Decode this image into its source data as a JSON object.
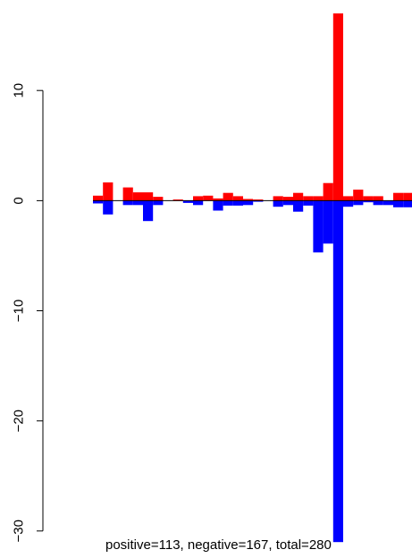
{
  "chart_data": {
    "type": "bar",
    "title": "",
    "xlabel": "",
    "ylabel": "",
    "ylim": [
      -30.5,
      17
    ],
    "y_ticks": [
      {
        "value": 10,
        "label": "10"
      },
      {
        "value": 0,
        "label": "0"
      },
      {
        "value": -10,
        "label": "−10"
      },
      {
        "value": -20,
        "label": "−20"
      },
      {
        "value": -30,
        "label": "−30"
      }
    ],
    "x_bin_count": 32,
    "series": [
      {
        "color": "#ff0000",
        "values": [
          0.45,
          1.65,
          0.0,
          1.2,
          0.75,
          0.75,
          0.35,
          0.0,
          0.1,
          0.0,
          0.4,
          0.45,
          0.2,
          0.7,
          0.4,
          0.15,
          0.1,
          0.0,
          0.4,
          0.35,
          0.7,
          0.4,
          0.4,
          1.6,
          17.0,
          0.4,
          1.0,
          0.4,
          0.4,
          0.0,
          0.7,
          0.7
        ]
      },
      {
        "color": "#0000ff",
        "values": [
          -0.25,
          -1.25,
          0.0,
          -0.4,
          -0.4,
          -1.85,
          -0.4,
          0.0,
          0.0,
          -0.2,
          -0.4,
          0.0,
          -0.9,
          -0.45,
          -0.45,
          -0.4,
          -0.1,
          0.0,
          -0.55,
          -0.4,
          -1.0,
          -0.45,
          -4.7,
          -3.9,
          -31.0,
          -0.55,
          -0.4,
          -0.15,
          -0.4,
          -0.4,
          -0.6,
          -0.6
        ]
      }
    ],
    "annotation": "positive=113, negative=167, total=280"
  }
}
